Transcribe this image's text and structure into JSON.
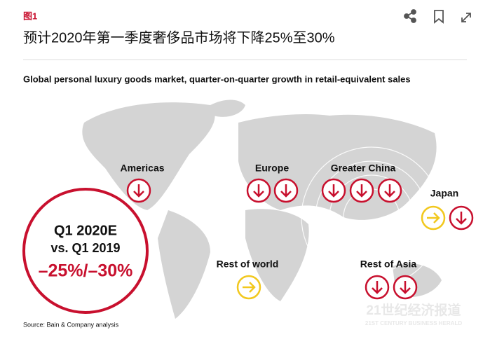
{
  "header": {
    "figure_label": "图1",
    "title": "预计2020年第一季度奢侈品市场将下降25%至30%"
  },
  "infographic": {
    "subtitle": "Global personal luxury goods market, quarter-on-quarter growth in retail-equivalent sales",
    "summary": {
      "period": "Q1 2020E",
      "comparison": "vs. Q1 2019",
      "change": "–25%/–30%"
    },
    "regions": [
      "Americas",
      "Europe",
      "Greater China",
      "Japan",
      "Rest of world",
      "Rest of Asia"
    ],
    "source": "Source: Bain & Company analysis"
  },
  "watermark": {
    "name": "21世纪经济报道",
    "english": "21ST CENTURY BUSINESS HERALD"
  }
}
